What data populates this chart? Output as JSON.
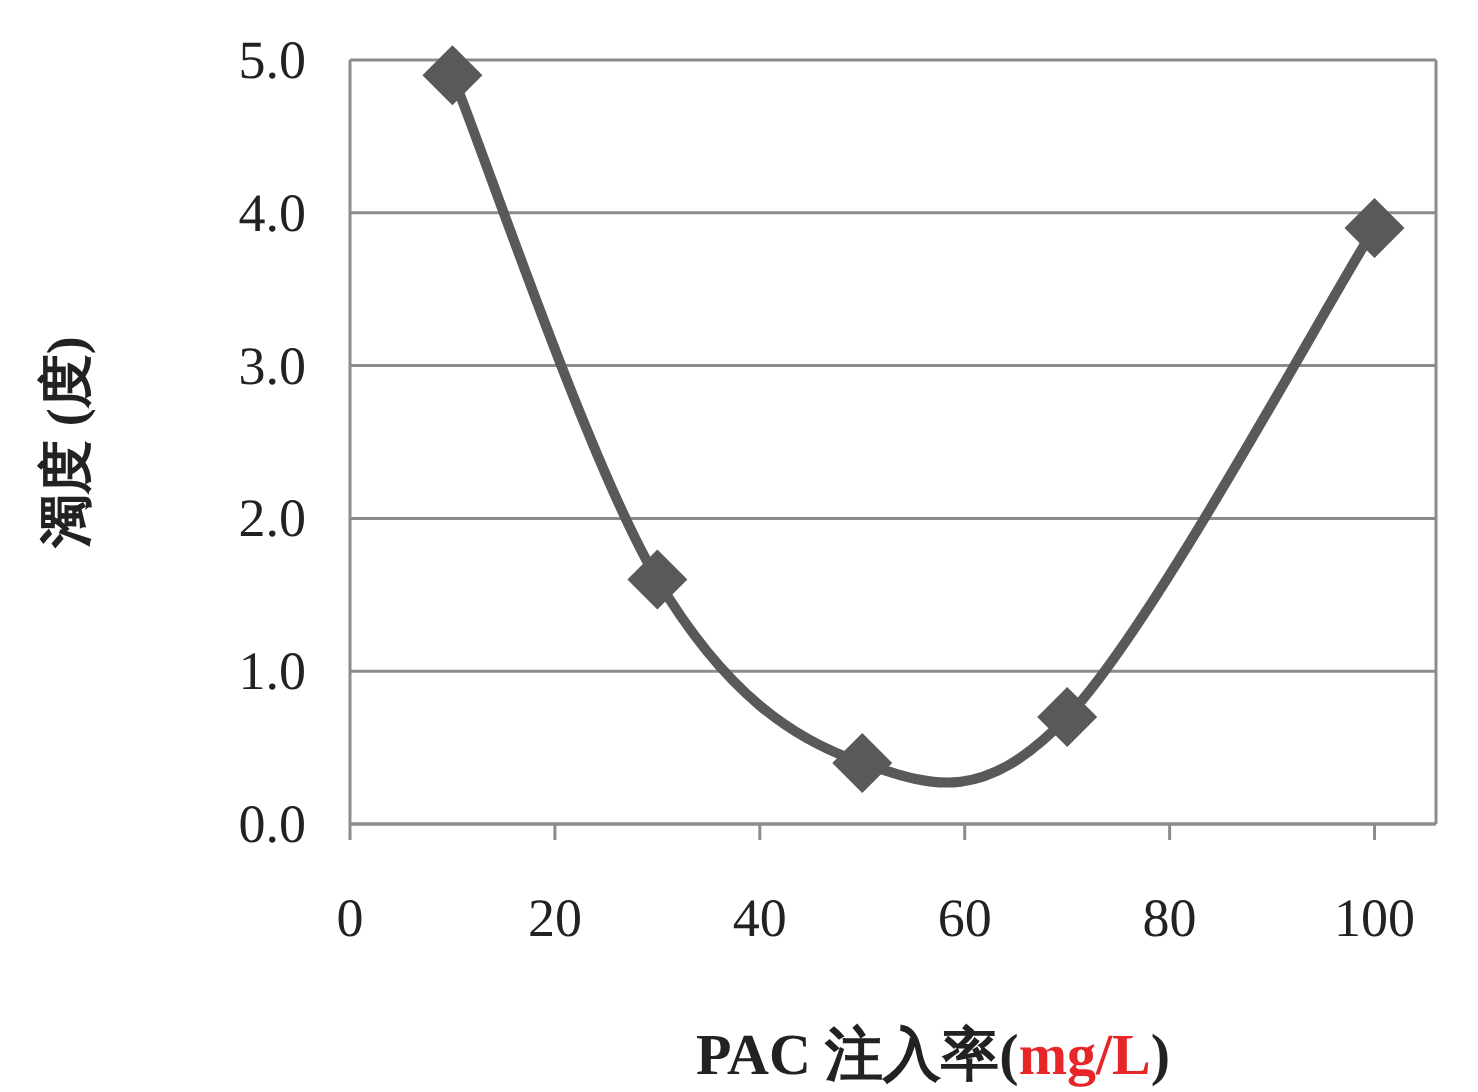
{
  "chart_data": {
    "type": "line",
    "xlabel": "PAC 注入率(mg/L)",
    "ylabel": "濁度 (度)",
    "x": [
      10,
      30,
      50,
      70,
      100
    ],
    "series": [
      {
        "color": "#595959",
        "values": [
          4.9,
          1.6,
          0.4,
          0.7,
          3.9
        ]
      }
    ],
    "xlim": [
      0,
      106
    ],
    "xticks": [
      0,
      20,
      40,
      60,
      80,
      100
    ],
    "ylim": [
      0,
      5
    ],
    "yticks": [
      {
        "value": 0,
        "label": "0.0"
      },
      {
        "value": 1,
        "label": "1.0"
      },
      {
        "value": 2,
        "label": "2.0"
      },
      {
        "value": 3,
        "label": "3.0"
      },
      {
        "value": 4,
        "label": "4.0"
      },
      {
        "value": 5,
        "label": "5.0"
      }
    ],
    "grid": "y",
    "marker": "diamond",
    "line_style": "solid"
  }
}
